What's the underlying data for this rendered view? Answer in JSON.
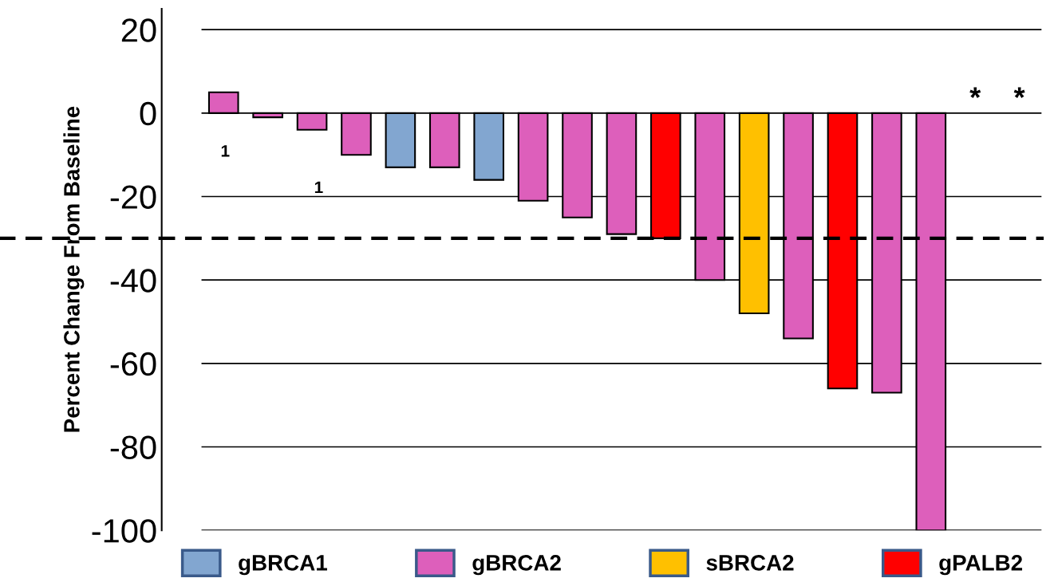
{
  "chart_data": {
    "type": "bar",
    "ylabel": "Percent Change From Baseline",
    "categories": [
      null,
      null,
      null,
      null,
      null,
      null,
      null,
      null,
      null,
      null,
      null,
      null,
      null,
      null,
      null,
      null,
      null,
      null,
      null
    ],
    "series": [
      {
        "name": "gBRCA1",
        "color": "#82a6d0",
        "values": [
          null,
          null,
          null,
          null,
          -13,
          null,
          -16,
          null,
          null,
          null,
          null,
          null,
          null,
          null,
          null,
          null,
          null,
          null,
          null
        ]
      },
      {
        "name": "gBRCA2",
        "color": "#dd5fbb",
        "values": [
          5,
          -1,
          -4,
          -10,
          null,
          -13,
          null,
          -21,
          -25,
          -29,
          null,
          -40,
          null,
          -54,
          null,
          -67,
          -100,
          null,
          null
        ],
        "value_labels": [
          null,
          null,
          null,
          null,
          null,
          null,
          null,
          null,
          null,
          null,
          null,
          null,
          null,
          null,
          null,
          null,
          null,
          "*",
          "*"
        ]
      },
      {
        "name": "sBRCA2",
        "color": "#ffc000",
        "values": [
          null,
          null,
          null,
          null,
          null,
          null,
          null,
          null,
          null,
          null,
          null,
          null,
          -48,
          null,
          null,
          null,
          null,
          null,
          null
        ]
      },
      {
        "name": "gPALB2",
        "color": "#ff0000",
        "values": [
          null,
          null,
          null,
          null,
          null,
          null,
          null,
          null,
          null,
          null,
          -30,
          null,
          null,
          null,
          -66,
          null,
          null,
          null,
          null
        ]
      }
    ],
    "ylim": [
      -100,
      25
    ],
    "yticks": [
      -100,
      -80,
      -60,
      -40,
      -20,
      0,
      20
    ],
    "grid": "y",
    "legend": "bottom",
    "annotations": [
      "1",
      "1"
    ],
    "ref_lines": [
      {
        "axis": "y",
        "value": -30,
        "color": "#000000",
        "line_style": "dashed"
      }
    ]
  }
}
